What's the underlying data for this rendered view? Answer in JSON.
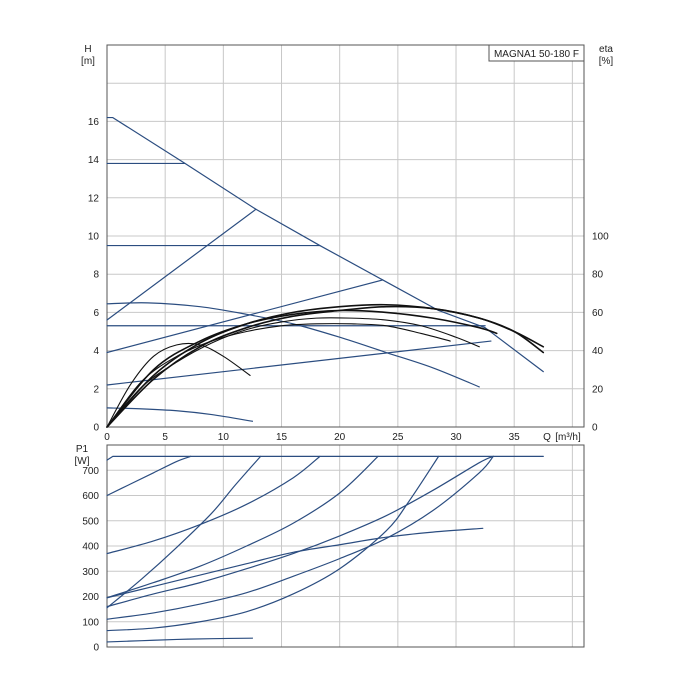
{
  "chart_data": [
    {
      "type": "line",
      "title": "MAGNA1 50-180 F",
      "ylabel": "H",
      "yunit": "[m]",
      "y2label": "eta",
      "y2unit": "[%]",
      "xlabel": "Q",
      "xunit": "[m³/h]",
      "xlim": [
        0,
        41
      ],
      "ylim": [
        0,
        20
      ],
      "y2lim": [
        0,
        100
      ],
      "grid": true,
      "x_ticks": [
        "0",
        "5",
        "10",
        "15",
        "20",
        "25",
        "30",
        "35"
      ],
      "y_ticks": [
        "0",
        "2",
        "4",
        "6",
        "8",
        "10",
        "12",
        "14",
        "16"
      ],
      "y2_ticks": [
        "0",
        "20",
        "40",
        "60",
        "80",
        "100"
      ],
      "colors": {
        "head": "#2b4d80",
        "efficiency": "#111111"
      },
      "series": [
        {
          "kind": "head",
          "x": [
            0,
            6.7
          ],
          "y": [
            13.8,
            13.8
          ]
        },
        {
          "kind": "head",
          "x": [
            0,
            18.3
          ],
          "y": [
            9.5,
            9.5
          ]
        },
        {
          "kind": "head",
          "x": [
            0,
            32.5
          ],
          "y": [
            5.3,
            5.3
          ]
        },
        {
          "kind": "head",
          "x": [
            0,
            0.5,
            6.7,
            12.8,
            18.3,
            23.7,
            28.5,
            32.5,
            37.5
          ],
          "y": [
            16.2,
            16.2,
            13.8,
            11.4,
            9.5,
            7.7,
            6.1,
            5.2,
            2.9
          ]
        },
        {
          "kind": "head",
          "x": [
            0,
            12.8
          ],
          "y": [
            5.6,
            11.4
          ]
        },
        {
          "kind": "head",
          "x": [
            0,
            23.7
          ],
          "y": [
            3.9,
            7.7
          ]
        },
        {
          "kind": "head",
          "x": [
            0,
            33
          ],
          "y": [
            2.2,
            4.5
          ]
        },
        {
          "kind": "head",
          "x": [
            0,
            3.5,
            8,
            12,
            16,
            20,
            24,
            28,
            32
          ],
          "y": [
            6.45,
            6.5,
            6.3,
            5.9,
            5.4,
            4.7,
            3.9,
            3.1,
            2.1
          ]
        },
        {
          "kind": "head",
          "x": [
            0,
            3,
            6,
            9,
            12.5
          ],
          "y": [
            1.0,
            0.95,
            0.85,
            0.65,
            0.3
          ]
        },
        {
          "kind": "efficiency",
          "x": [
            0,
            2,
            4,
            6,
            8,
            10,
            12.3
          ],
          "y": [
            0,
            22,
            37,
            43,
            43,
            37,
            27
          ]
        },
        {
          "kind": "efficiency",
          "x": [
            0,
            3,
            6,
            9,
            12,
            15,
            18,
            21,
            24,
            27,
            29.5
          ],
          "y": [
            0,
            24,
            37,
            45,
            50,
            53,
            54,
            54,
            53,
            49,
            45
          ]
        },
        {
          "kind": "efficiency",
          "x": [
            0,
            3,
            6,
            9,
            12,
            15,
            18,
            21,
            24,
            27,
            30,
            32
          ],
          "y": [
            0,
            21,
            34,
            44,
            51,
            55,
            57,
            57,
            56,
            53,
            47,
            42
          ]
        },
        {
          "kind": "efficiency",
          "x": [
            0,
            4,
            8,
            12,
            16,
            20,
            24,
            28,
            32,
            33.5
          ],
          "y": [
            0,
            30,
            45,
            54,
            59,
            61,
            60,
            57,
            52,
            49
          ]
        },
        {
          "kind": "efficiency",
          "x": [
            0,
            4,
            8,
            12,
            16,
            20,
            24,
            28,
            32,
            35,
            37.5
          ],
          "y": [
            0,
            27,
            44,
            54,
            60,
            63,
            64,
            62,
            57,
            50,
            42
          ]
        },
        {
          "kind": "efficiency",
          "x": [
            0,
            4,
            8,
            12,
            16,
            20,
            24,
            28,
            32,
            35,
            37.5
          ],
          "y": [
            0,
            25,
            42,
            52,
            58,
            61,
            63,
            62,
            57,
            50,
            39
          ]
        }
      ]
    },
    {
      "type": "line",
      "ylabel": "P1",
      "yunit": "[W]",
      "xlim": [
        0,
        41
      ],
      "ylim": [
        0,
        800
      ],
      "grid": true,
      "y_ticks": [
        "0",
        "100",
        "200",
        "300",
        "400",
        "500",
        "600",
        "700"
      ],
      "colors": {
        "power": "#2b4d80"
      },
      "series": [
        {
          "x": [
            0,
            0.5,
            37.5
          ],
          "y": [
            740,
            755,
            755
          ]
        },
        {
          "x": [
            0,
            2,
            4,
            6,
            7.2
          ],
          "y": [
            600,
            645,
            690,
            735,
            755
          ]
        },
        {
          "x": [
            0,
            4,
            8,
            12,
            16,
            18.3
          ],
          "y": [
            370,
            420,
            485,
            565,
            670,
            755
          ]
        },
        {
          "x": [
            0,
            4,
            8,
            12,
            16,
            20,
            23.3
          ],
          "y": [
            195,
            255,
            320,
            400,
            490,
            610,
            755
          ]
        },
        {
          "x": [
            0,
            4,
            8,
            12,
            16,
            20,
            24,
            28,
            32,
            33.2
          ],
          "y": [
            160,
            210,
            255,
            310,
            370,
            440,
            520,
            620,
            730,
            755
          ]
        },
        {
          "x": [
            0,
            4,
            8,
            12,
            16,
            20,
            24,
            28,
            32,
            33.2
          ],
          "y": [
            110,
            135,
            170,
            215,
            280,
            350,
            430,
            540,
            690,
            755
          ]
        },
        {
          "x": [
            0,
            4,
            8,
            12,
            16,
            20,
            24,
            28,
            32.3
          ],
          "y": [
            195,
            240,
            285,
            330,
            375,
            405,
            435,
            455,
            470
          ]
        },
        {
          "x": [
            0,
            3,
            6,
            9,
            11,
            13.2
          ],
          "y": [
            155,
            270,
            395,
            530,
            640,
            755
          ]
        },
        {
          "x": [
            0,
            4,
            8,
            12,
            16,
            20,
            24,
            26,
            28.5
          ],
          "y": [
            65,
            75,
            100,
            140,
            210,
            310,
            460,
            580,
            755
          ]
        },
        {
          "x": [
            0,
            3,
            6,
            9,
            12.5
          ],
          "y": [
            20,
            25,
            30,
            33,
            35
          ]
        }
      ]
    }
  ]
}
